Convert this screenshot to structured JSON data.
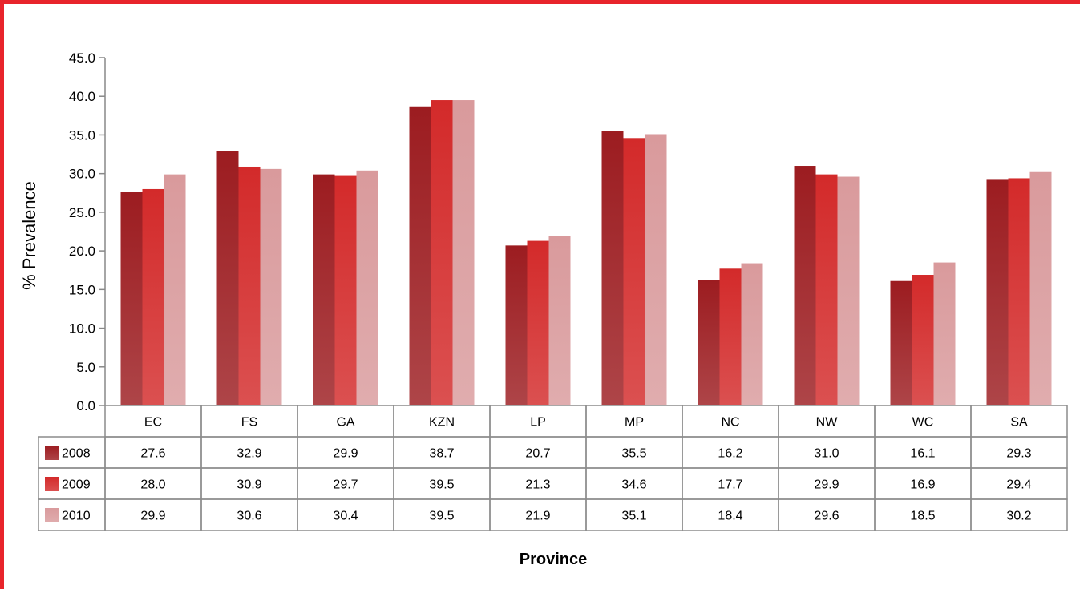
{
  "chart_data": {
    "type": "bar",
    "title": "",
    "xlabel": "Province",
    "ylabel": "% Prevalence",
    "ylim": [
      0,
      45
    ],
    "ytick_step": 5,
    "ytick_labels": [
      "0.0",
      "5.0",
      "10.0",
      "15.0",
      "20.0",
      "25.0",
      "30.0",
      "35.0",
      "40.0",
      "45.0"
    ],
    "grid": false,
    "legend": "data-table",
    "categories": [
      "EC",
      "FS",
      "GA",
      "KZN",
      "LP",
      "MP",
      "NC",
      "NW",
      "WC",
      "SA"
    ],
    "series": [
      {
        "name": "2008",
        "color": "#9c1c20",
        "values": [
          27.6,
          32.9,
          29.9,
          38.7,
          20.7,
          35.5,
          16.2,
          31.0,
          16.1,
          29.3
        ],
        "labels": [
          "27.6",
          "32.9",
          "29.9",
          "38.7",
          "20.7",
          "35.5",
          "16.2",
          "31.0",
          "16.1",
          "29.3"
        ]
      },
      {
        "name": "2009",
        "color": "#d32a2a",
        "values": [
          28.0,
          30.9,
          29.7,
          39.5,
          21.3,
          34.6,
          17.7,
          29.9,
          16.9,
          29.4
        ],
        "labels": [
          "28.0",
          "30.9",
          "29.7",
          "39.5",
          "21.3",
          "34.6",
          "17.7",
          "29.9",
          "16.9",
          "29.4"
        ]
      },
      {
        "name": "2010",
        "color": "#d99a9c",
        "values": [
          29.9,
          30.6,
          30.4,
          39.5,
          21.9,
          35.1,
          18.4,
          29.6,
          18.5,
          30.2
        ],
        "labels": [
          "29.9",
          "30.6",
          "30.4",
          "39.5",
          "21.9",
          "35.1",
          "18.4",
          "29.6",
          "18.5",
          "30.2"
        ]
      }
    ]
  },
  "colors": {
    "frame": "#e8242b",
    "axis": "#888888",
    "table_border": "#8c8c8c"
  }
}
